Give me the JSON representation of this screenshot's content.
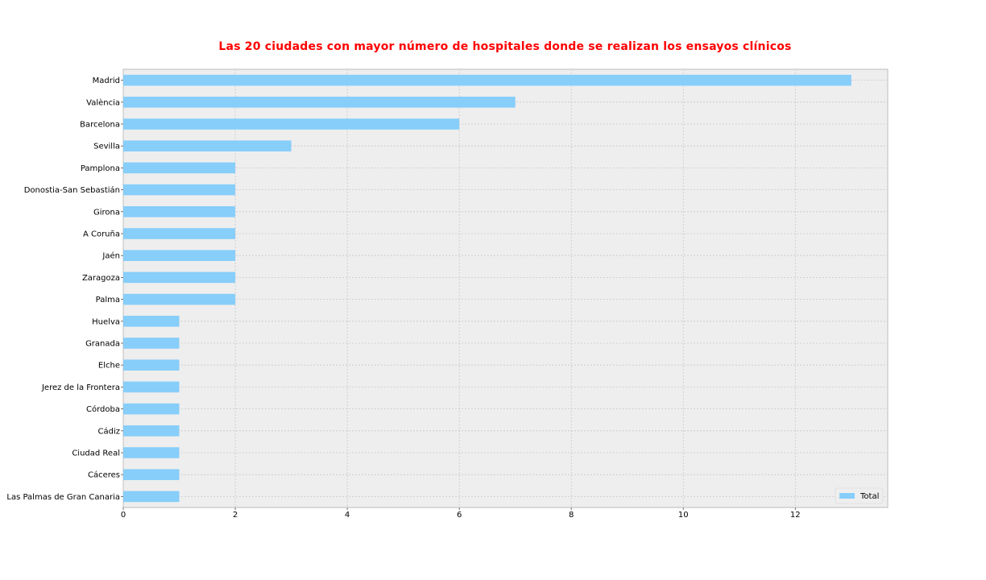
{
  "chart_data": {
    "type": "bar",
    "orientation": "horizontal",
    "title": "Las 20 ciudades con mayor número de hospitales donde se realizan los ensayos clínicos",
    "xlabel": "",
    "ylabel": "",
    "categories": [
      "Madrid",
      "València",
      "Barcelona",
      "Sevilla",
      "Pamplona",
      "Donostia-San Sebastián",
      "Girona",
      "A Coruña",
      "Jaén",
      "Zaragoza",
      "Palma",
      "Huelva",
      "Granada",
      "Elche",
      "Jerez de la Frontera",
      "Córdoba",
      "Cádiz",
      "Ciudad Real",
      "Cáceres",
      "Las Palmas de Gran Canaria"
    ],
    "series": [
      {
        "name": "Total",
        "color": "#87cefa",
        "values": [
          13,
          7,
          6,
          3,
          2,
          2,
          2,
          2,
          2,
          2,
          2,
          1,
          1,
          1,
          1,
          1,
          1,
          1,
          1,
          1
        ]
      }
    ],
    "xlim": [
      0,
      13.65
    ],
    "xticks": [
      "0",
      "2",
      "4",
      "6",
      "8",
      "10",
      "12"
    ],
    "grid": true,
    "legend_position": "bottom-right",
    "colors": {
      "background": "#eeeeee",
      "grid": "#c8c8c8",
      "title": "#ff0000",
      "bar": "#87cefa"
    }
  }
}
